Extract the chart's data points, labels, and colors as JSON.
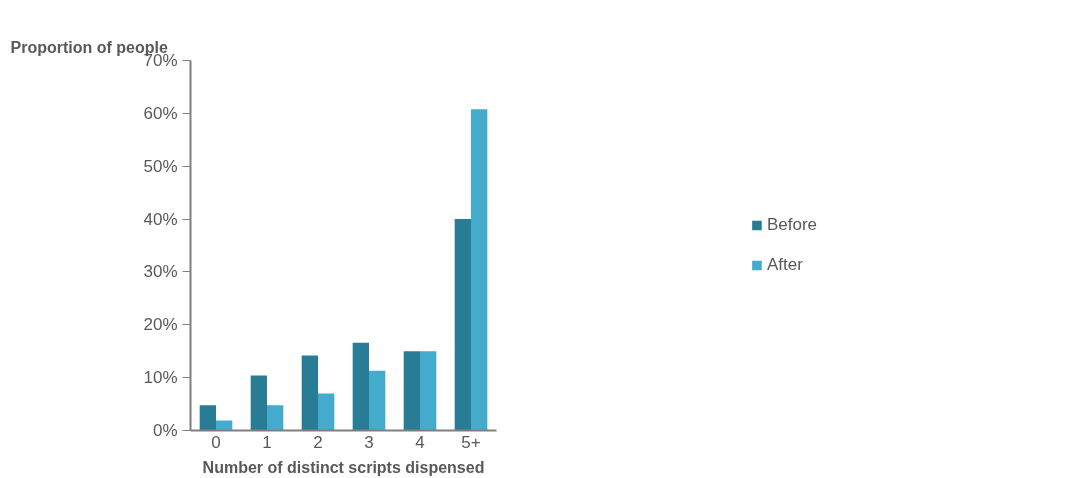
{
  "chart_data": {
    "type": "bar",
    "ylabel": "Proportion of people",
    "xlabel": "Number of distinct scripts dispensed",
    "categories": [
      "0",
      "1",
      "2",
      "3",
      "4",
      "5+"
    ],
    "series": [
      {
        "name": "Before",
        "color": "#287c96",
        "values": [
          4.8,
          10.4,
          14.2,
          16.6,
          15.0,
          40.0
        ]
      },
      {
        "name": "After",
        "color": "#44abcd",
        "values": [
          1.9,
          4.8,
          7.0,
          11.3,
          15.0,
          60.8
        ]
      }
    ],
    "ylim": [
      0,
      70
    ],
    "yticks": [
      {
        "value": 0,
        "label": "0%"
      },
      {
        "value": 10,
        "label": "10%"
      },
      {
        "value": 20,
        "label": "20%"
      },
      {
        "value": 30,
        "label": "30%"
      },
      {
        "value": 40,
        "label": "40%"
      },
      {
        "value": 50,
        "label": "50%"
      },
      {
        "value": 60,
        "label": "60%"
      },
      {
        "value": 70,
        "label": "70%"
      }
    ],
    "grid": false,
    "legend": "right"
  }
}
